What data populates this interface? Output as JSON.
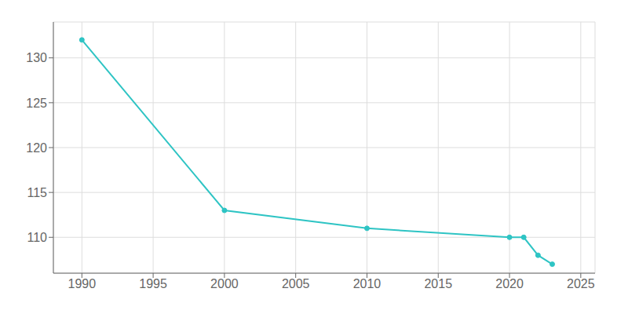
{
  "chart_data": {
    "type": "line",
    "x": [
      1990,
      2000,
      2010,
      2020,
      2021,
      2022,
      2023
    ],
    "values": [
      132,
      113,
      111,
      110,
      110,
      108,
      107
    ],
    "color": "#2ec4c4",
    "marker": "circle",
    "xlim": [
      1988,
      2026
    ],
    "ylim": [
      106,
      134
    ],
    "xticks": [
      1990,
      1995,
      2000,
      2005,
      2010,
      2015,
      2020,
      2025
    ],
    "yticks": [
      110,
      115,
      120,
      125,
      130
    ],
    "grid": true
  }
}
